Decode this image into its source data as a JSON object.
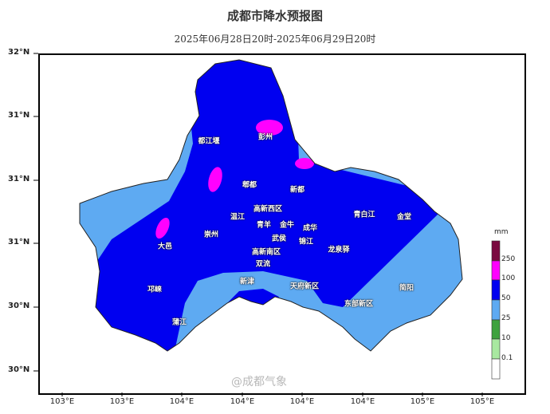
{
  "title": "成都市降水预报图",
  "subtitle": "2025年06月28日20时-2025年06月29日20时",
  "y_ticks": [
    "32°N",
    "31°N",
    "31°N",
    "31°N",
    "30°N",
    "30°N"
  ],
  "x_ticks": [
    "103°E",
    "103°E",
    "104°E",
    "104°E",
    "104°E",
    "104°E",
    "105°E",
    "105°E"
  ],
  "districts": [
    "都江堰",
    "彭州",
    "郫都",
    "新都",
    "温江",
    "高新西区",
    "青羊",
    "金牛",
    "成华",
    "青白江",
    "金堂",
    "崇州",
    "大邑",
    "武侯",
    "锦江",
    "高新南区",
    "龙泉驿",
    "双流",
    "新津",
    "天府新区",
    "邛崃",
    "简阳",
    "东部新区",
    "蒲江"
  ],
  "legend": {
    "unit": "mm",
    "thresholds": [
      "250",
      "100",
      "50",
      "25",
      "10",
      "0.1"
    ],
    "colors": [
      "#7a0a40",
      "#ff00ff",
      "#0000f0",
      "#5eaaf2",
      "#3ea23e",
      "#a8e8a0",
      "#ffffff"
    ]
  },
  "watermark": "@成都气象",
  "colors": {
    "heavy": "#0000f0",
    "moderate": "#5eaaf2",
    "rainstorm": "#ff00ff"
  }
}
